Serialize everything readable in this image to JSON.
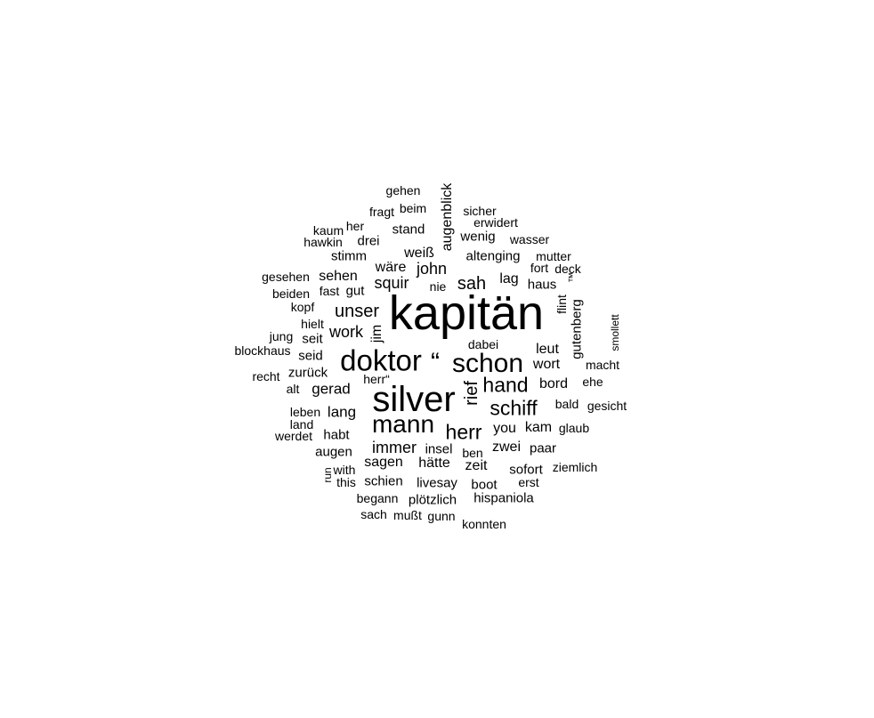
{
  "text_color": "#000000",
  "background_color": "#ffffff",
  "words": [
    {
      "text": "kapitän"
    },
    {
      "text": "silver"
    },
    {
      "text": "doktor"
    },
    {
      "text": "schon"
    },
    {
      "text": "mann"
    },
    {
      "text": "“"
    },
    {
      "text": "herr"
    },
    {
      "text": "hand"
    },
    {
      "text": "schiff"
    },
    {
      "text": "rief",
      "vertical": true
    },
    {
      "text": "sah"
    },
    {
      "text": "unser"
    },
    {
      "text": "work"
    },
    {
      "text": "john"
    },
    {
      "text": "squir"
    },
    {
      "text": "wäre"
    },
    {
      "text": "augenblick",
      "vertical": true
    },
    {
      "text": "sehen"
    },
    {
      "text": "weiß"
    },
    {
      "text": "gerad"
    },
    {
      "text": "lang"
    },
    {
      "text": "immer"
    },
    {
      "text": "sagen"
    },
    {
      "text": "zeit"
    },
    {
      "text": "leut"
    },
    {
      "text": "bord"
    },
    {
      "text": "wort"
    },
    {
      "text": "lag"
    },
    {
      "text": "kam"
    },
    {
      "text": "zwei"
    },
    {
      "text": "you"
    },
    {
      "text": "hätte"
    },
    {
      "text": "stand"
    },
    {
      "text": "altenging"
    },
    {
      "text": "wenig"
    },
    {
      "text": "haus"
    },
    {
      "text": "zurück"
    },
    {
      "text": "habt"
    },
    {
      "text": "seid"
    },
    {
      "text": "schien"
    },
    {
      "text": "livesay"
    },
    {
      "text": "plötzlich"
    },
    {
      "text": "hispaniola"
    },
    {
      "text": "boot"
    },
    {
      "text": "sofort"
    },
    {
      "text": "paar"
    },
    {
      "text": "jim",
      "vertical": true
    },
    {
      "text": "gutenberg",
      "vertical": true
    },
    {
      "text": "flint",
      "vertical": true
    },
    {
      "text": "gut"
    },
    {
      "text": "drei"
    },
    {
      "text": "stimm"
    },
    {
      "text": "seit"
    },
    {
      "text": "augen"
    },
    {
      "text": "insel"
    },
    {
      "text": "erwidert"
    },
    {
      "text": "beim"
    },
    {
      "text": "fragt"
    },
    {
      "text": "gehen"
    },
    {
      "text": "sicher"
    },
    {
      "text": "wasser"
    },
    {
      "text": "fort"
    },
    {
      "text": "deck"
    },
    {
      "text": "mutter"
    },
    {
      "text": "™",
      "vertical": true
    },
    {
      "text": "smollett",
      "vertical": true
    },
    {
      "text": "macht"
    },
    {
      "text": "ehe"
    },
    {
      "text": "gesicht"
    },
    {
      "text": "bald"
    },
    {
      "text": "glaub"
    },
    {
      "text": "ziemlich"
    },
    {
      "text": "erst"
    },
    {
      "text": "konnten"
    },
    {
      "text": "gunn"
    },
    {
      "text": "mußt"
    },
    {
      "text": "sach"
    },
    {
      "text": "begann"
    },
    {
      "text": "this"
    },
    {
      "text": "with"
    },
    {
      "text": "run",
      "vertical": true
    },
    {
      "text": "ben"
    },
    {
      "text": "werdet"
    },
    {
      "text": "land"
    },
    {
      "text": "leben"
    },
    {
      "text": "alt"
    },
    {
      "text": "recht"
    },
    {
      "text": "herr“"
    },
    {
      "text": "blockhaus"
    },
    {
      "text": "jung"
    },
    {
      "text": "hielt"
    },
    {
      "text": "kopf"
    },
    {
      "text": "beiden"
    },
    {
      "text": "fast"
    },
    {
      "text": "gesehen"
    },
    {
      "text": "hawkin"
    },
    {
      "text": "kaum"
    },
    {
      "text": "her"
    },
    {
      "text": "nie"
    },
    {
      "text": "dabei"
    }
  ]
}
